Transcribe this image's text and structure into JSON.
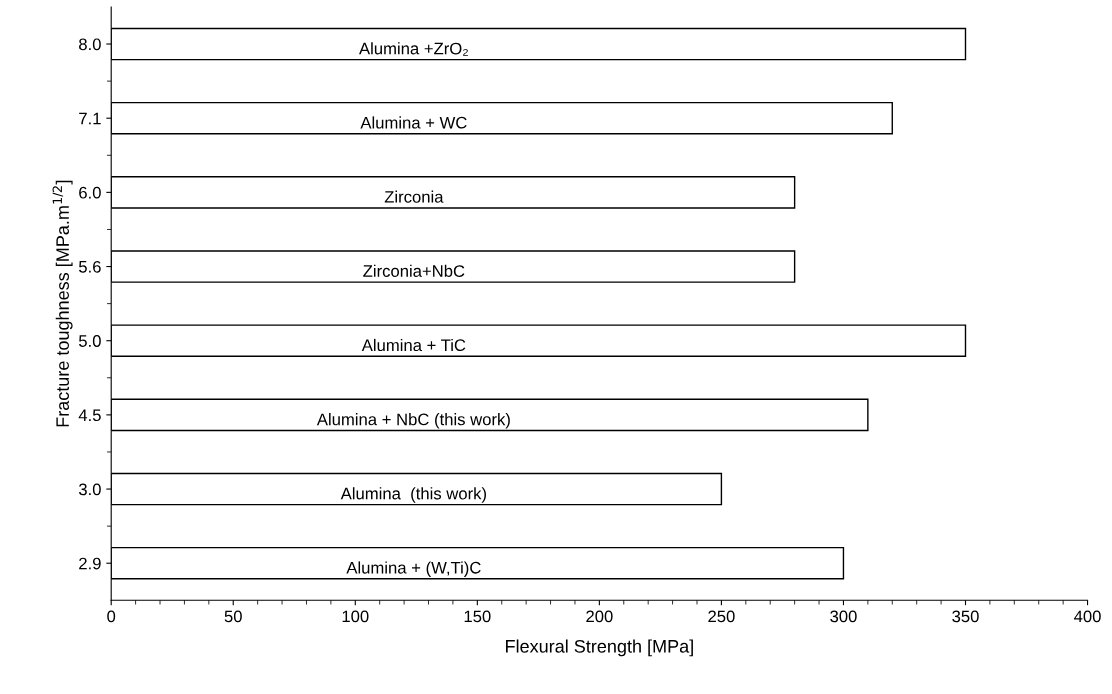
{
  "chart_data": {
    "type": "bar",
    "orientation": "horizontal",
    "xlabel": "Flexural Strength [MPa]",
    "ylabel": "Fracture toughness [MPa.m$^{1/2}$]",
    "categories": [
      "8.0",
      "7.1",
      "6.0",
      "5.6",
      "5.0",
      "4.5",
      "3.0",
      "2.9"
    ],
    "values": [
      350,
      320,
      280,
      280,
      350,
      310,
      250,
      300
    ],
    "color": "#ffffff",
    "xlim": [
      0,
      400
    ],
    "xticks": [
      0,
      50,
      100,
      150,
      200,
      250,
      300,
      350,
      400
    ],
    "grid": false,
    "annotations": [
      "Alumina +ZrO₂",
      "Alumina + WC",
      "Zirconia",
      "Zirconia+NbC",
      "Alumina + TiC",
      "Alumina + NbC (this work)",
      "Alumina  (this work)",
      "Alumina + (W,Ti)C"
    ]
  }
}
